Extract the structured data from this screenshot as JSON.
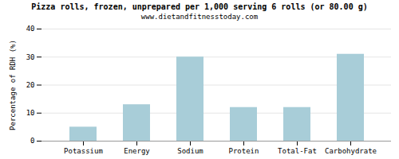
{
  "chart_data": {
    "type": "bar",
    "title": "Pizza rolls, frozen, unprepared per 1,000 serving 6 rolls (or 80.00 g)",
    "subtitle": "www.dietandfitnesstoday.com",
    "categories": [
      "Potassium",
      "Energy",
      "Sodium",
      "Protein",
      "Total-Fat",
      "Carbohydrate"
    ],
    "values": [
      5,
      13,
      30,
      12,
      12,
      31
    ],
    "color": "#a8cdd8",
    "ylabel": "Percentage of RDH (%)",
    "ylim": [
      0,
      40
    ],
    "yticks": [
      0,
      10,
      20,
      30,
      40
    ],
    "grid": true
  }
}
